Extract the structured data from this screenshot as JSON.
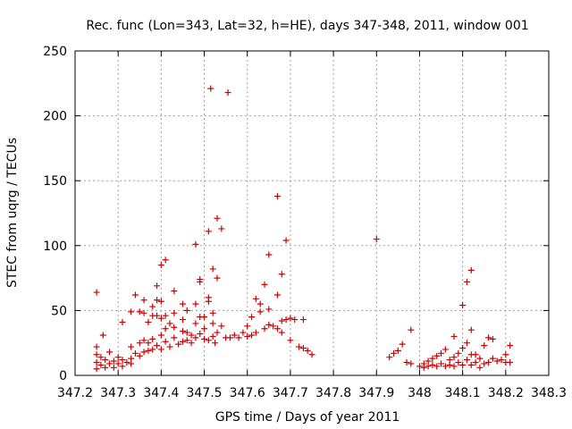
{
  "chart_data": {
    "type": "scatter",
    "title": "Rec. func (Lon=343, Lat=32, h=HE), days 347-348, 2011, window 001",
    "xlabel": "GPS time / Days of year 2011",
    "ylabel": "STEC from uqrg / TECUs",
    "xlim": [
      347.2,
      348.3
    ],
    "ylim": [
      0,
      250
    ],
    "x_ticks": [
      347.2,
      347.3,
      347.4,
      347.5,
      347.6,
      347.7,
      347.8,
      347.9,
      348,
      348.1,
      348.2,
      348.3
    ],
    "x_tick_labels": [
      "347.2",
      "347.3",
      "347.4",
      "347.5",
      "347.6",
      "347.7",
      "347.8",
      "347.9",
      "348",
      "348.1",
      "348.2",
      "348.3"
    ],
    "y_ticks": [
      0,
      50,
      100,
      150,
      200,
      250
    ],
    "y_tick_labels": [
      "0",
      "50",
      "100",
      "150",
      "200",
      "250"
    ],
    "grid": true,
    "marker": "+",
    "color": "#cc0000",
    "series": [
      {
        "points": [
          [
            347.25,
            64
          ],
          [
            347.25,
            22
          ],
          [
            347.25,
            16
          ],
          [
            347.25,
            10
          ],
          [
            347.25,
            5
          ],
          [
            347.26,
            14
          ],
          [
            347.26,
            8
          ],
          [
            347.265,
            31
          ],
          [
            347.27,
            12
          ],
          [
            347.27,
            6
          ],
          [
            347.28,
            18
          ],
          [
            347.28,
            9
          ],
          [
            347.29,
            11
          ],
          [
            347.29,
            6
          ],
          [
            347.3,
            14
          ],
          [
            347.3,
            9
          ],
          [
            347.31,
            41
          ],
          [
            347.31,
            12
          ],
          [
            347.31,
            7
          ],
          [
            347.32,
            10
          ],
          [
            347.33,
            49
          ],
          [
            347.33,
            22
          ],
          [
            347.33,
            13
          ],
          [
            347.33,
            9
          ],
          [
            347.34,
            62
          ],
          [
            347.34,
            17
          ],
          [
            347.35,
            49
          ],
          [
            347.35,
            25
          ],
          [
            347.35,
            15
          ],
          [
            347.36,
            58
          ],
          [
            347.36,
            48
          ],
          [
            347.36,
            27
          ],
          [
            347.36,
            18
          ],
          [
            347.37,
            41
          ],
          [
            347.37,
            25
          ],
          [
            347.37,
            19
          ],
          [
            347.38,
            53
          ],
          [
            347.38,
            46
          ],
          [
            347.38,
            28
          ],
          [
            347.38,
            20
          ],
          [
            347.39,
            69
          ],
          [
            347.39,
            58
          ],
          [
            347.39,
            46
          ],
          [
            347.39,
            23
          ],
          [
            347.4,
            85
          ],
          [
            347.4,
            57
          ],
          [
            347.4,
            44
          ],
          [
            347.4,
            31
          ],
          [
            347.4,
            20
          ],
          [
            347.41,
            89
          ],
          [
            347.41,
            46
          ],
          [
            347.41,
            36
          ],
          [
            347.41,
            26
          ],
          [
            347.42,
            40
          ],
          [
            347.42,
            22
          ],
          [
            347.43,
            65
          ],
          [
            347.43,
            48
          ],
          [
            347.43,
            37
          ],
          [
            347.43,
            29
          ],
          [
            347.44,
            24
          ],
          [
            347.45,
            55
          ],
          [
            347.45,
            43
          ],
          [
            347.45,
            34
          ],
          [
            347.45,
            26
          ],
          [
            347.46,
            50
          ],
          [
            347.46,
            33
          ],
          [
            347.46,
            27
          ],
          [
            347.47,
            31
          ],
          [
            347.47,
            25
          ],
          [
            347.48,
            101
          ],
          [
            347.48,
            55
          ],
          [
            347.48,
            40
          ],
          [
            347.48,
            29
          ],
          [
            347.49,
            74
          ],
          [
            347.49,
            72
          ],
          [
            347.49,
            45
          ],
          [
            347.49,
            32
          ],
          [
            347.5,
            45
          ],
          [
            347.5,
            36
          ],
          [
            347.5,
            28
          ],
          [
            347.51,
            111
          ],
          [
            347.51,
            60
          ],
          [
            347.51,
            57
          ],
          [
            347.51,
            27
          ],
          [
            347.515,
            221
          ],
          [
            347.52,
            82
          ],
          [
            347.52,
            48
          ],
          [
            347.52,
            40
          ],
          [
            347.52,
            30
          ],
          [
            347.525,
            25
          ],
          [
            347.53,
            121
          ],
          [
            347.53,
            75
          ],
          [
            347.53,
            33
          ],
          [
            347.54,
            113
          ],
          [
            347.54,
            38
          ],
          [
            347.55,
            29
          ],
          [
            347.555,
            218
          ],
          [
            347.56,
            29
          ],
          [
            347.57,
            31
          ],
          [
            347.58,
            29
          ],
          [
            347.59,
            33
          ],
          [
            347.6,
            38
          ],
          [
            347.6,
            30
          ],
          [
            347.61,
            45
          ],
          [
            347.61,
            31
          ],
          [
            347.62,
            59
          ],
          [
            347.62,
            33
          ],
          [
            347.63,
            49
          ],
          [
            347.63,
            55
          ],
          [
            347.64,
            70
          ],
          [
            347.64,
            36
          ],
          [
            347.65,
            93
          ],
          [
            347.65,
            51
          ],
          [
            347.65,
            39
          ],
          [
            347.66,
            38
          ],
          [
            347.67,
            138
          ],
          [
            347.67,
            62
          ],
          [
            347.67,
            36
          ],
          [
            347.68,
            78
          ],
          [
            347.68,
            42
          ],
          [
            347.68,
            33
          ],
          [
            347.69,
            104
          ],
          [
            347.69,
            43
          ],
          [
            347.7,
            44
          ],
          [
            347.7,
            27
          ],
          [
            347.71,
            43
          ],
          [
            347.72,
            22
          ],
          [
            347.73,
            43
          ],
          [
            347.73,
            21
          ],
          [
            347.74,
            19
          ],
          [
            347.75,
            16
          ],
          [
            347.9,
            105
          ],
          [
            347.93,
            14
          ],
          [
            347.94,
            17
          ],
          [
            347.95,
            19
          ],
          [
            347.96,
            24
          ],
          [
            347.97,
            10
          ],
          [
            347.98,
            35
          ],
          [
            347.98,
            9
          ],
          [
            348.0,
            7
          ],
          [
            348.01,
            9
          ],
          [
            348.01,
            6
          ],
          [
            348.02,
            11
          ],
          [
            348.02,
            7
          ],
          [
            348.03,
            13
          ],
          [
            348.03,
            8
          ],
          [
            348.04,
            15
          ],
          [
            348.04,
            7
          ],
          [
            348.05,
            17
          ],
          [
            348.05,
            9
          ],
          [
            348.06,
            20
          ],
          [
            348.06,
            7
          ],
          [
            348.07,
            12
          ],
          [
            348.07,
            8
          ],
          [
            348.08,
            30
          ],
          [
            348.08,
            14
          ],
          [
            348.08,
            7
          ],
          [
            348.09,
            17
          ],
          [
            348.09,
            10
          ],
          [
            348.1,
            54
          ],
          [
            348.1,
            21
          ],
          [
            348.1,
            8
          ],
          [
            348.11,
            72
          ],
          [
            348.11,
            25
          ],
          [
            348.11,
            12
          ],
          [
            348.12,
            81
          ],
          [
            348.12,
            35
          ],
          [
            348.12,
            16
          ],
          [
            348.12,
            8
          ],
          [
            348.13,
            16
          ],
          [
            348.13,
            10
          ],
          [
            348.14,
            13
          ],
          [
            348.14,
            6
          ],
          [
            348.15,
            23
          ],
          [
            348.15,
            9
          ],
          [
            348.16,
            29
          ],
          [
            348.16,
            10
          ],
          [
            348.17,
            28
          ],
          [
            348.17,
            13
          ],
          [
            348.18,
            11
          ],
          [
            348.19,
            12
          ],
          [
            348.2,
            16
          ],
          [
            348.2,
            10
          ],
          [
            348.21,
            23
          ],
          [
            348.21,
            10
          ]
        ]
      }
    ]
  }
}
